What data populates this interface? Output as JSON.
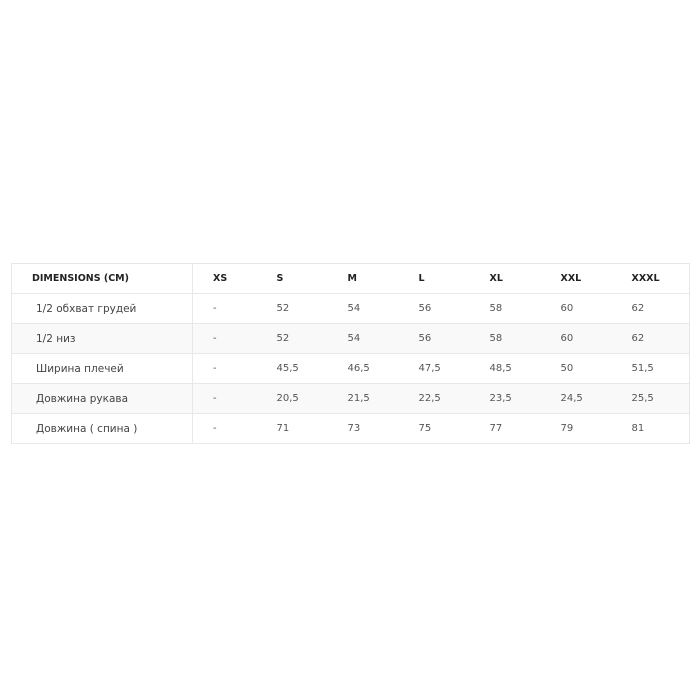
{
  "table": {
    "headers": [
      "DIMENSIONS (CM)",
      "XS",
      "S",
      "M",
      "L",
      "XL",
      "XXL",
      "XXXL"
    ],
    "rows": [
      [
        "1/2 обхват грудей",
        "-",
        "52",
        "54",
        "56",
        "58",
        "60",
        "62"
      ],
      [
        "1/2 низ",
        "-",
        "52",
        "54",
        "56",
        "58",
        "60",
        "62"
      ],
      [
        "Ширина плечей",
        "-",
        "45,5",
        "46,5",
        "47,5",
        "48,5",
        "50",
        "51,5"
      ],
      [
        "Довжина рукава",
        "-",
        "20,5",
        "21,5",
        "22,5",
        "23,5",
        "24,5",
        "25,5"
      ],
      [
        "Довжина ( спина )",
        "-",
        "71",
        "73",
        "75",
        "77",
        "79",
        "81"
      ]
    ]
  }
}
